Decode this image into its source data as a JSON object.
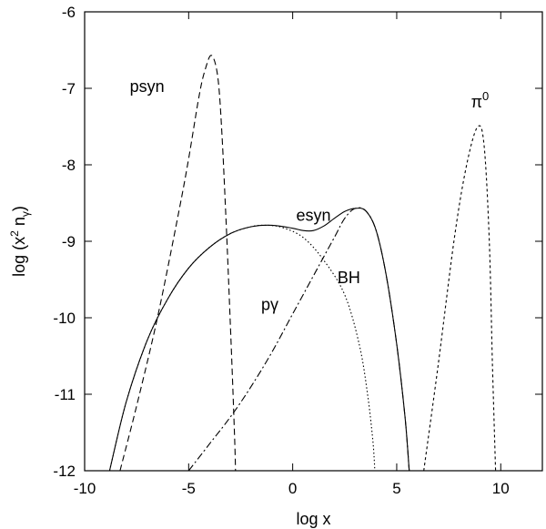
{
  "chart_data": {
    "type": "line",
    "xlabel": "log x",
    "ylabel": {
      "base": "log (x",
      "sup": "2",
      "mid": " n",
      "sub": "γ",
      "end": ")"
    },
    "xlim": [
      -10,
      12
    ],
    "ylim": [
      -12,
      -6
    ],
    "xticks": [
      -10,
      -5,
      0,
      5,
      10
    ],
    "yticks": [
      -12,
      -11,
      -10,
      -9,
      -8,
      -7,
      -6
    ],
    "grid": false,
    "legend": "none",
    "series": [
      {
        "label": "psyn",
        "dash": "long-dash",
        "points": [
          [
            -8.3,
            -12
          ],
          [
            -7.5,
            -11.15
          ],
          [
            -6.5,
            -10.0
          ],
          [
            -5.5,
            -8.65
          ],
          [
            -5.0,
            -7.92
          ],
          [
            -4.5,
            -7.1
          ],
          [
            -4.2,
            -6.75
          ],
          [
            -3.9,
            -6.57
          ],
          [
            -3.6,
            -6.85
          ],
          [
            -3.4,
            -7.6
          ],
          [
            -3.2,
            -8.75
          ],
          [
            -3.0,
            -10.05
          ],
          [
            -2.8,
            -11.5
          ],
          [
            -2.75,
            -12
          ]
        ]
      },
      {
        "label": "esyn",
        "dash": "solid",
        "points": [
          [
            -8.8,
            -12
          ],
          [
            -8.0,
            -11.1
          ],
          [
            -7.0,
            -10.3
          ],
          [
            -6.0,
            -9.75
          ],
          [
            -5.0,
            -9.35
          ],
          [
            -4.0,
            -9.08
          ],
          [
            -3.0,
            -8.9
          ],
          [
            -2.0,
            -8.81
          ],
          [
            -1.0,
            -8.79
          ],
          [
            0.0,
            -8.83
          ],
          [
            0.5,
            -8.86
          ],
          [
            1.0,
            -8.86
          ],
          [
            1.5,
            -8.8
          ],
          [
            2.0,
            -8.7
          ],
          [
            2.5,
            -8.61
          ],
          [
            3.0,
            -8.57
          ],
          [
            3.5,
            -8.6
          ],
          [
            4.0,
            -8.85
          ],
          [
            4.5,
            -9.45
          ],
          [
            5.0,
            -10.35
          ],
          [
            5.4,
            -11.3
          ],
          [
            5.6,
            -12
          ]
        ]
      },
      {
        "label": "pγ",
        "dash": "dotted",
        "points": [
          [
            -8.8,
            -12
          ],
          [
            -8.0,
            -11.1
          ],
          [
            -7.0,
            -10.3
          ],
          [
            -6.0,
            -9.75
          ],
          [
            -5.0,
            -9.35
          ],
          [
            -4.0,
            -9.08
          ],
          [
            -3.0,
            -8.9
          ],
          [
            -2.0,
            -8.81
          ],
          [
            -1.3,
            -8.79
          ],
          [
            -0.5,
            -8.82
          ],
          [
            0.5,
            -8.95
          ],
          [
            1.5,
            -9.25
          ],
          [
            2.5,
            -9.7
          ],
          [
            3.2,
            -10.35
          ],
          [
            3.6,
            -11.0
          ],
          [
            3.85,
            -11.6
          ],
          [
            3.95,
            -12
          ]
        ]
      },
      {
        "label": "BH",
        "dash": "dash-dot",
        "points": [
          [
            -5.0,
            -12
          ],
          [
            -4.0,
            -11.65
          ],
          [
            -3.0,
            -11.3
          ],
          [
            -2.0,
            -10.9
          ],
          [
            -1.0,
            -10.45
          ],
          [
            0.0,
            -9.95
          ],
          [
            1.0,
            -9.45
          ],
          [
            2.0,
            -8.95
          ],
          [
            2.5,
            -8.7
          ],
          [
            3.0,
            -8.57
          ],
          [
            3.5,
            -8.6
          ],
          [
            4.0,
            -8.85
          ],
          [
            4.5,
            -9.45
          ],
          [
            5.0,
            -10.35
          ],
          [
            5.4,
            -11.3
          ],
          [
            5.6,
            -12
          ]
        ]
      },
      {
        "label": "π0",
        "label_sup": "0",
        "dash": "short-dash",
        "points": [
          [
            6.3,
            -12
          ],
          [
            7.0,
            -10.6
          ],
          [
            7.8,
            -8.9
          ],
          [
            8.4,
            -7.95
          ],
          [
            8.9,
            -7.5
          ],
          [
            9.2,
            -7.75
          ],
          [
            9.45,
            -9.0
          ],
          [
            9.6,
            -10.6
          ],
          [
            9.75,
            -12
          ]
        ]
      }
    ],
    "annotations": [
      {
        "text": "psyn",
        "x": -7.0,
        "y": -7.05
      },
      {
        "text": "esyn",
        "x": 1.0,
        "y": -8.73
      },
      {
        "text": "pγ",
        "x": -1.1,
        "y": -9.9
      },
      {
        "text": "BH",
        "x": 2.7,
        "y": -9.55
      },
      {
        "text": "π",
        "sup": "0",
        "x": 9.0,
        "y": -7.25
      }
    ]
  }
}
